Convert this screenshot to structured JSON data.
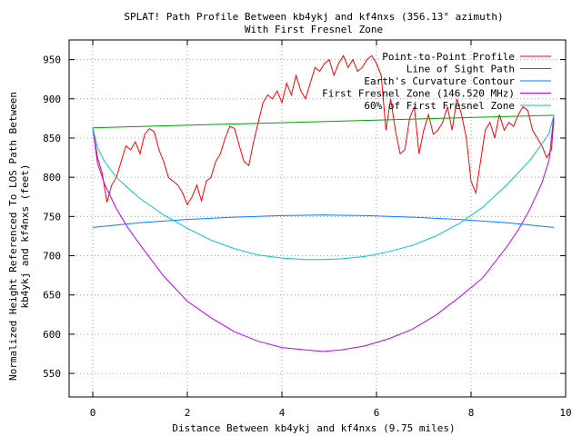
{
  "chart_data": {
    "type": "line",
    "title": "SPLAT! Path Profile Between kb4ykj and kf4nxs (356.13° azimuth)",
    "subtitle": "With First Fresnel Zone",
    "xlabel": "Distance Between kb4ykj and kf4nxs (9.75 miles)",
    "ylabel_line1": "Normalized Height Referenced To LOS Path Between",
    "ylabel_line2": "kb4ykj and kf4nxs (feet)",
    "xlim": [
      -0.5,
      10
    ],
    "ylim": [
      520,
      975
    ],
    "xticks": [
      0,
      2,
      4,
      6,
      8,
      10
    ],
    "yticks": [
      550,
      600,
      650,
      700,
      750,
      800,
      850,
      900,
      950
    ],
    "grid": true,
    "legend_position": "top-right",
    "series": [
      {
        "name": "Point-to-Point Profile",
        "color": "#ff0000",
        "x": [
          0,
          0.1,
          0.2,
          0.3,
          0.4,
          0.5,
          0.6,
          0.7,
          0.8,
          0.9,
          1.0,
          1.1,
          1.2,
          1.3,
          1.4,
          1.5,
          1.6,
          1.7,
          1.8,
          1.9,
          2.0,
          2.1,
          2.2,
          2.3,
          2.4,
          2.5,
          2.6,
          2.7,
          2.8,
          2.9,
          3.0,
          3.1,
          3.2,
          3.3,
          3.4,
          3.5,
          3.6,
          3.7,
          3.8,
          3.9,
          4.0,
          4.1,
          4.2,
          4.3,
          4.4,
          4.5,
          4.6,
          4.7,
          4.8,
          4.9,
          5.0,
          5.1,
          5.2,
          5.3,
          5.4,
          5.5,
          5.6,
          5.7,
          5.8,
          5.9,
          6.0,
          6.1,
          6.2,
          6.3,
          6.4,
          6.5,
          6.6,
          6.7,
          6.8,
          6.9,
          7.0,
          7.1,
          7.2,
          7.3,
          7.4,
          7.5,
          7.6,
          7.7,
          7.8,
          7.9,
          8.0,
          8.1,
          8.2,
          8.3,
          8.4,
          8.5,
          8.6,
          8.7,
          8.8,
          8.9,
          9.0,
          9.1,
          9.2,
          9.3,
          9.4,
          9.5,
          9.6,
          9.7,
          9.75
        ],
        "y": [
          863,
          825,
          805,
          768,
          790,
          800,
          820,
          840,
          835,
          845,
          830,
          855,
          862,
          858,
          835,
          820,
          800,
          795,
          790,
          780,
          765,
          775,
          790,
          770,
          795,
          800,
          820,
          830,
          850,
          865,
          862,
          840,
          820,
          815,
          845,
          870,
          895,
          905,
          900,
          910,
          895,
          920,
          905,
          930,
          910,
          900,
          920,
          940,
          935,
          945,
          950,
          930,
          945,
          955,
          940,
          950,
          935,
          940,
          950,
          955,
          945,
          930,
          860,
          900,
          860,
          830,
          835,
          875,
          890,
          830,
          860,
          880,
          855,
          860,
          870,
          890,
          860,
          900,
          880,
          850,
          795,
          780,
          820,
          860,
          870,
          850,
          880,
          860,
          870,
          865,
          880,
          890,
          885,
          860,
          850,
          840,
          825,
          835,
          875
        ]
      },
      {
        "name": "Line of Sight Path",
        "color": "#00a000",
        "x": [
          0,
          9.75
        ],
        "y": [
          863,
          879
        ]
      },
      {
        "name": "Earth's Curvature Contour",
        "color": "#0080ff",
        "x": [
          0,
          0.975,
          1.95,
          2.925,
          3.9,
          4.875,
          5.85,
          6.825,
          7.8,
          8.775,
          9.75
        ],
        "y": [
          736,
          742,
          746,
          749,
          751,
          752,
          751,
          749,
          746,
          742,
          736
        ]
      },
      {
        "name": "First Fresnel Zone (146.520 MHz)",
        "color": "#c000ff",
        "x": [
          0,
          0.1,
          0.25,
          0.5,
          0.75,
          1.0,
          1.5,
          2.0,
          2.5,
          3.0,
          3.5,
          4.0,
          4.5,
          4.875,
          5.25,
          5.75,
          6.25,
          6.75,
          7.25,
          7.75,
          8.25,
          8.75,
          9.0,
          9.25,
          9.5,
          9.65,
          9.75
        ],
        "y": [
          863,
          818,
          791,
          760,
          735,
          714,
          674,
          642,
          621,
          603,
          591,
          583,
          580,
          578,
          580,
          585,
          594,
          606,
          624,
          647,
          672,
          711,
          733,
          760,
          793,
          822,
          879
        ]
      },
      {
        "name": "60% of First Fresnel Zone",
        "color": "#00c8c8",
        "x": [
          0,
          0.1,
          0.25,
          0.5,
          0.75,
          1.0,
          1.5,
          2.0,
          2.5,
          3.0,
          3.5,
          4.0,
          4.5,
          4.875,
          5.25,
          5.75,
          6.25,
          6.75,
          7.25,
          7.75,
          8.25,
          8.75,
          9.0,
          9.25,
          9.5,
          9.65,
          9.75
        ],
        "y": [
          863,
          838,
          820,
          800,
          786,
          773,
          752,
          735,
          720,
          709,
          701,
          697,
          695,
          695,
          696,
          699,
          705,
          713,
          725,
          741,
          762,
          790,
          806,
          822,
          843,
          856,
          879
        ]
      }
    ]
  }
}
